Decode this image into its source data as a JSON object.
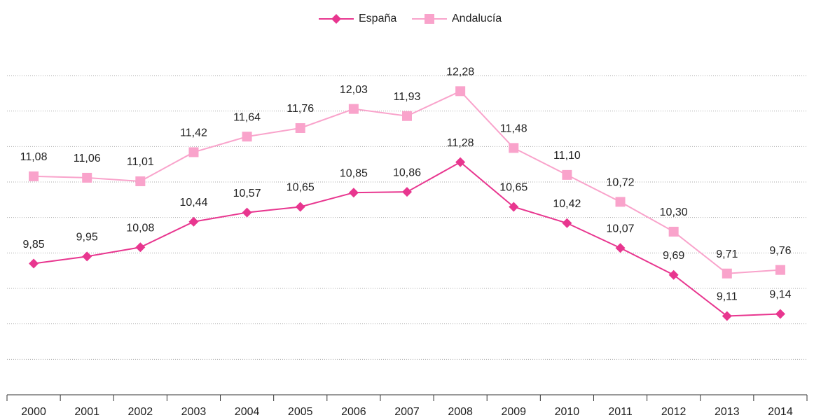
{
  "chart_data": {
    "type": "line",
    "categories": [
      "2000",
      "2001",
      "2002",
      "2003",
      "2004",
      "2005",
      "2006",
      "2007",
      "2008",
      "2009",
      "2010",
      "2011",
      "2012",
      "2013",
      "2014"
    ],
    "series": [
      {
        "name": "España",
        "color": "#e8368f",
        "marker": "diamond",
        "values": [
          9.85,
          9.95,
          10.08,
          10.44,
          10.57,
          10.65,
          10.85,
          10.86,
          11.28,
          10.65,
          10.42,
          10.07,
          9.69,
          9.11,
          9.14
        ],
        "value_labels": [
          "9,85",
          "9,95",
          "10,08",
          "10,44",
          "10,57",
          "10,65",
          "10,85",
          "10,86",
          "11,28",
          "10,65",
          "10,42",
          "10,07",
          "9,69",
          "9,11",
          "9,14"
        ]
      },
      {
        "name": "Andalucía",
        "color": "#f9a3cb",
        "marker": "square",
        "values": [
          11.08,
          11.06,
          11.01,
          11.42,
          11.64,
          11.76,
          12.03,
          11.93,
          12.28,
          11.48,
          11.1,
          10.72,
          10.3,
          9.71,
          9.76
        ],
        "value_labels": [
          "11,08",
          "11,06",
          "11,01",
          "11,42",
          "11,64",
          "11,76",
          "12,03",
          "11,93",
          "12,28",
          "11,48",
          "11,10",
          "10,72",
          "10,30",
          "9,71",
          "9,76"
        ]
      }
    ],
    "ylim": [
      8,
      12.5
    ],
    "yticks": [
      8,
      8.5,
      9,
      9.5,
      10,
      10.5,
      11,
      11.5,
      12,
      12.5
    ],
    "grid": true,
    "legend": "top"
  }
}
